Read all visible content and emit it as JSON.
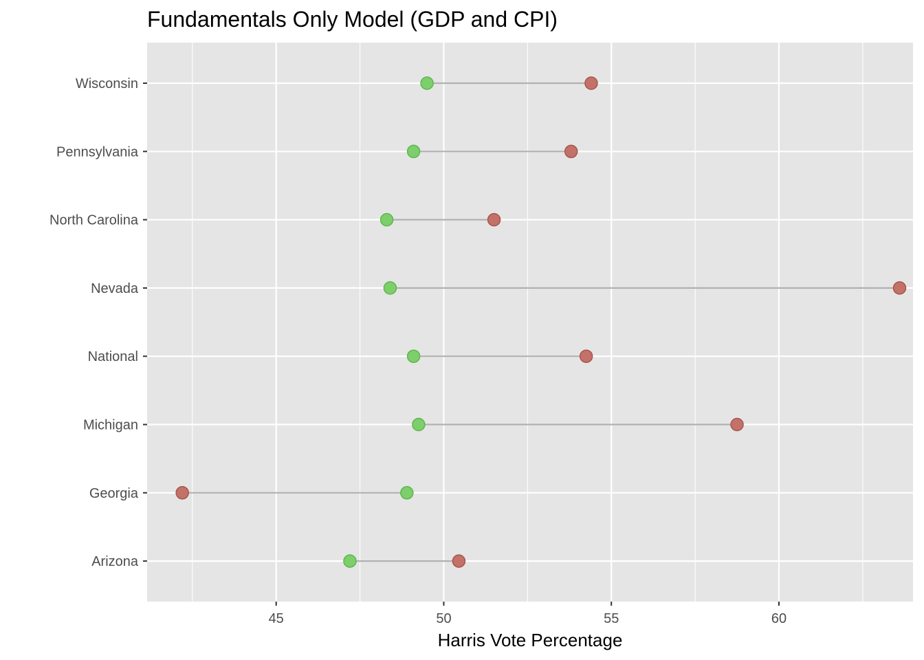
{
  "chart_data": {
    "type": "dumbbell",
    "title": "Fundamentals Only Model (GDP and CPI)",
    "xlabel": "Harris Vote Percentage",
    "ylabel": "",
    "xlim": [
      41.15,
      64.0
    ],
    "x_ticks": [
      45,
      50,
      55,
      60
    ],
    "x_minor_gridlines": [
      42.5,
      47.5,
      52.5,
      57.5,
      62.5
    ],
    "grid": true,
    "legend": "none",
    "colors": {
      "panel_bg": "#e5e5e5",
      "grid": "#ffffff",
      "segment": "#b0b0b0",
      "green_point": "#7ccf6b",
      "green_stroke": "#5fb54e",
      "red_point": "#c27268",
      "red_stroke": "#a8554b"
    },
    "categories": [
      "Wisconsin",
      "Pennsylvania",
      "North Carolina",
      "Nevada",
      "National",
      "Michigan",
      "Georgia",
      "Arizona"
    ],
    "series": [
      {
        "color": "green",
        "values": [
          49.5,
          49.1,
          48.3,
          48.4,
          49.1,
          49.25,
          48.9,
          47.2
        ]
      },
      {
        "color": "red",
        "values": [
          54.4,
          53.8,
          51.5,
          63.6,
          54.25,
          58.75,
          42.2,
          50.45
        ]
      }
    ]
  }
}
